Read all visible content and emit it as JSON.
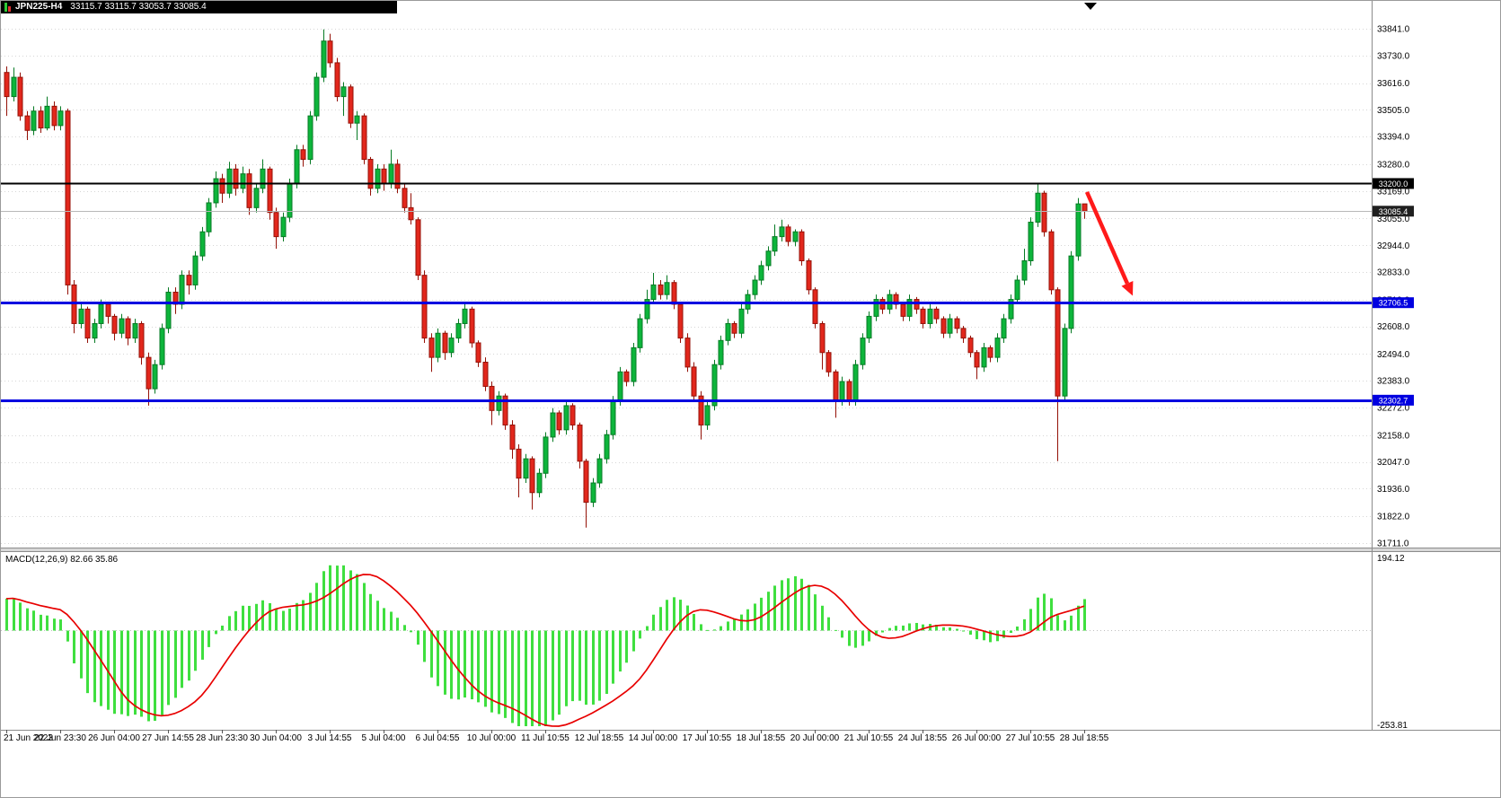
{
  "title": {
    "symbol": "JPN225-H4",
    "values": "33115.7 33115.7 33053.7 33085.4"
  },
  "colors": {
    "up_fill": "#0db53b",
    "up_stroke": "#067a24",
    "down_fill": "#e2271c",
    "down_stroke": "#941107",
    "grid": "#d6d6d6",
    "axis_line": "#8c8c8c",
    "blue_line": "#0000e0",
    "black_line": "#000000",
    "current_line": "#b8b8b8",
    "macd_hist": "#3fdf3f",
    "macd_signal": "#e80000",
    "arrow": "#ff1a1a",
    "badge_text": "#ffffff"
  },
  "chart_data": {
    "type": "candlestick",
    "symbol": "JPN225",
    "timeframe": "H4",
    "title": "JPN225-H4",
    "current_price": 33085.4,
    "y_axis": {
      "max": 33841.0,
      "min": 31711.0,
      "tick_labels": [
        "33841.0",
        "33730.0",
        "33616.0",
        "33505.0",
        "33394.0",
        "33280.0",
        "33169.0",
        "33055.0",
        "32944.0",
        "32833.0",
        "32719.0",
        "32608.0",
        "32494.0",
        "32383.0",
        "32272.0",
        "32158.0",
        "32047.0",
        "31936.0",
        "31822.0",
        "31711.0"
      ]
    },
    "x_tick_labels": [
      "21 Jun 2023",
      "22 Jun 23:30",
      "26 Jun 04:00",
      "27 Jun 14:55",
      "28 Jun 23:30",
      "30 Jun 04:00",
      "3 Jul 14:55",
      "5 Jul 04:00",
      "6 Jul 04:55",
      "10 Jul 00:00",
      "11 Jul 10:55",
      "12 Jul 18:55",
      "14 Jul 00:00",
      "17 Jul 10:55",
      "18 Jul 18:55",
      "20 Jul 00:00",
      "21 Jul 10:55",
      "24 Jul 18:55",
      "26 Jul 00:00",
      "27 Jul 10:55",
      "28 Jul 18:55"
    ],
    "x_tick_every_n_candles": 8,
    "horizontal_lines": [
      {
        "label": "33200.0",
        "value": 33200.0,
        "style": "solid",
        "color": "#000000",
        "badge_bg": "#000000",
        "thickness": 2
      },
      {
        "label": "33085.4",
        "value": 33085.4,
        "style": "current",
        "color": "#b8b8b8",
        "badge_bg": "#1f1f1f",
        "thickness": 1
      },
      {
        "label": "32706.5",
        "value": 32706.5,
        "style": "solid",
        "color": "#0000e0",
        "badge_bg": "#0000e0",
        "thickness": 3
      },
      {
        "label": "32302.7",
        "value": 32302.7,
        "style": "solid",
        "color": "#0000e0",
        "badge_bg": "#0000e0",
        "thickness": 3
      }
    ],
    "indicator": {
      "name": "MACD",
      "params": "12,26,9",
      "label": "MACD(12,26,9) 82.66 35.86",
      "values": [
        82.66,
        35.86
      ],
      "axis": {
        "max": 194.12,
        "min": -253.81,
        "max_label": "194.12",
        "min_label": "-253.81"
      }
    },
    "annotations": [
      {
        "type": "arrow",
        "color": "#ff1a1a",
        "from": {
          "index": 160.4,
          "price": 33165
        },
        "to": {
          "index": 167.2,
          "price": 32735
        }
      }
    ],
    "candles_ohlc": [
      [
        33660,
        33685,
        33480,
        33560
      ],
      [
        33560,
        33680,
        33540,
        33640
      ],
      [
        33640,
        33660,
        33460,
        33480
      ],
      [
        33480,
        33500,
        33380,
        33420
      ],
      [
        33420,
        33520,
        33400,
        33500
      ],
      [
        33500,
        33520,
        33410,
        33430
      ],
      [
        33430,
        33560,
        33420,
        33520
      ],
      [
        33520,
        33540,
        33420,
        33440
      ],
      [
        33440,
        33520,
        33420,
        33500
      ],
      [
        33500,
        33510,
        32740,
        32780
      ],
      [
        32780,
        32800,
        32580,
        32620
      ],
      [
        32620,
        32700,
        32600,
        32680
      ],
      [
        32680,
        32690,
        32540,
        32560
      ],
      [
        32560,
        32640,
        32540,
        32620
      ],
      [
        32620,
        32720,
        32600,
        32700
      ],
      [
        32700,
        32710,
        32620,
        32650
      ],
      [
        32650,
        32660,
        32550,
        32580
      ],
      [
        32580,
        32660,
        32560,
        32640
      ],
      [
        32640,
        32650,
        32530,
        32560
      ],
      [
        32560,
        32640,
        32540,
        32620
      ],
      [
        32620,
        32630,
        32450,
        32480
      ],
      [
        32480,
        32500,
        32280,
        32350
      ],
      [
        32350,
        32470,
        32330,
        32450
      ],
      [
        32450,
        32620,
        32430,
        32600
      ],
      [
        32600,
        32770,
        32580,
        32750
      ],
      [
        32750,
        32770,
        32660,
        32700
      ],
      [
        32700,
        32840,
        32680,
        32820
      ],
      [
        32820,
        32840,
        32740,
        32780
      ],
      [
        32780,
        32920,
        32760,
        32900
      ],
      [
        32900,
        33020,
        32880,
        33000
      ],
      [
        33000,
        33140,
        32980,
        33120
      ],
      [
        33120,
        33250,
        33100,
        33220
      ],
      [
        33220,
        33240,
        33120,
        33160
      ],
      [
        33160,
        33290,
        33140,
        33260
      ],
      [
        33260,
        33280,
        33150,
        33180
      ],
      [
        33180,
        33270,
        33160,
        33240
      ],
      [
        33240,
        33260,
        33070,
        33100
      ],
      [
        33100,
        33200,
        33080,
        33180
      ],
      [
        33180,
        33300,
        33160,
        33260
      ],
      [
        33260,
        33270,
        33050,
        33080
      ],
      [
        33080,
        33100,
        32930,
        32980
      ],
      [
        32980,
        33080,
        32960,
        33060
      ],
      [
        33060,
        33220,
        33040,
        33200
      ],
      [
        33200,
        33360,
        33180,
        33340
      ],
      [
        33340,
        33360,
        33270,
        33300
      ],
      [
        33300,
        33500,
        33280,
        33480
      ],
      [
        33480,
        33660,
        33460,
        33640
      ],
      [
        33640,
        33838,
        33620,
        33790
      ],
      [
        33790,
        33820,
        33680,
        33700
      ],
      [
        33700,
        33720,
        33540,
        33560
      ],
      [
        33560,
        33620,
        33480,
        33600
      ],
      [
        33600,
        33610,
        33430,
        33450
      ],
      [
        33450,
        33500,
        33380,
        33480
      ],
      [
        33480,
        33490,
        33280,
        33300
      ],
      [
        33300,
        33310,
        33150,
        33180
      ],
      [
        33180,
        33280,
        33160,
        33260
      ],
      [
        33260,
        33280,
        33170,
        33200
      ],
      [
        33200,
        33340,
        33180,
        33280
      ],
      [
        33280,
        33300,
        33160,
        33180
      ],
      [
        33180,
        33200,
        33080,
        33100
      ],
      [
        33100,
        33160,
        33030,
        33050
      ],
      [
        33050,
        33060,
        32800,
        32820
      ],
      [
        32820,
        32840,
        32540,
        32560
      ],
      [
        32560,
        32580,
        32420,
        32480
      ],
      [
        32480,
        32600,
        32460,
        32580
      ],
      [
        32580,
        32590,
        32470,
        32500
      ],
      [
        32500,
        32580,
        32480,
        32560
      ],
      [
        32560,
        32640,
        32540,
        32620
      ],
      [
        32620,
        32700,
        32600,
        32680
      ],
      [
        32680,
        32690,
        32520,
        32540
      ],
      [
        32540,
        32550,
        32440,
        32460
      ],
      [
        32460,
        32480,
        32340,
        32360
      ],
      [
        32360,
        32380,
        32200,
        32260
      ],
      [
        32260,
        32340,
        32240,
        32320
      ],
      [
        32320,
        32330,
        32180,
        32200
      ],
      [
        32200,
        32220,
        32060,
        32100
      ],
      [
        32100,
        32120,
        31900,
        31980
      ],
      [
        31980,
        32080,
        31960,
        32060
      ],
      [
        32060,
        32070,
        31850,
        31920
      ],
      [
        31920,
        32020,
        31900,
        32000
      ],
      [
        32000,
        32170,
        31980,
        32150
      ],
      [
        32150,
        32270,
        32130,
        32250
      ],
      [
        32250,
        32260,
        32160,
        32180
      ],
      [
        32180,
        32300,
        32160,
        32280
      ],
      [
        32280,
        32290,
        32180,
        32200
      ],
      [
        32200,
        32210,
        32020,
        32050
      ],
      [
        32050,
        32060,
        31775,
        31880
      ],
      [
        31880,
        31980,
        31860,
        31960
      ],
      [
        31960,
        32080,
        31940,
        32060
      ],
      [
        32060,
        32180,
        32040,
        32160
      ],
      [
        32160,
        32320,
        32140,
        32300
      ],
      [
        32300,
        32440,
        32280,
        32420
      ],
      [
        32420,
        32430,
        32360,
        32380
      ],
      [
        32380,
        32540,
        32360,
        32520
      ],
      [
        32520,
        32660,
        32500,
        32640
      ],
      [
        32640,
        32760,
        32620,
        32720
      ],
      [
        32720,
        32830,
        32700,
        32780
      ],
      [
        32780,
        32800,
        32720,
        32740
      ],
      [
        32740,
        32820,
        32720,
        32790
      ],
      [
        32790,
        32800,
        32680,
        32700
      ],
      [
        32700,
        32710,
        32540,
        32560
      ],
      [
        32560,
        32580,
        32420,
        32440
      ],
      [
        32440,
        32460,
        32300,
        32320
      ],
      [
        32320,
        32340,
        32140,
        32200
      ],
      [
        32200,
        32300,
        32180,
        32280
      ],
      [
        32280,
        32470,
        32260,
        32450
      ],
      [
        32450,
        32570,
        32430,
        32550
      ],
      [
        32550,
        32640,
        32530,
        32620
      ],
      [
        32620,
        32630,
        32560,
        32580
      ],
      [
        32580,
        32700,
        32560,
        32680
      ],
      [
        32680,
        32760,
        32660,
        32740
      ],
      [
        32740,
        32820,
        32720,
        32800
      ],
      [
        32800,
        32880,
        32780,
        32860
      ],
      [
        32860,
        32940,
        32840,
        32920
      ],
      [
        32920,
        33030,
        32900,
        32980
      ],
      [
        32980,
        33050,
        32960,
        33020
      ],
      [
        33020,
        33030,
        32940,
        32960
      ],
      [
        32960,
        33010,
        32940,
        33000
      ],
      [
        33000,
        33010,
        32860,
        32880
      ],
      [
        32880,
        32890,
        32740,
        32760
      ],
      [
        32760,
        32770,
        32600,
        32620
      ],
      [
        32620,
        32630,
        32430,
        32500
      ],
      [
        32500,
        32510,
        32400,
        32420
      ],
      [
        32420,
        32430,
        32230,
        32300
      ],
      [
        32300,
        32400,
        32280,
        32380
      ],
      [
        32380,
        32390,
        32280,
        32300
      ],
      [
        32300,
        32470,
        32280,
        32450
      ],
      [
        32450,
        32580,
        32430,
        32560
      ],
      [
        32560,
        32670,
        32540,
        32650
      ],
      [
        32650,
        32740,
        32630,
        32720
      ],
      [
        32720,
        32730,
        32660,
        32680
      ],
      [
        32680,
        32760,
        32660,
        32740
      ],
      [
        32740,
        32750,
        32680,
        32700
      ],
      [
        32700,
        32710,
        32630,
        32650
      ],
      [
        32650,
        32740,
        32630,
        32720
      ],
      [
        32720,
        32730,
        32660,
        32680
      ],
      [
        32680,
        32690,
        32600,
        32620
      ],
      [
        32620,
        32700,
        32600,
        32680
      ],
      [
        32680,
        32690,
        32620,
        32640
      ],
      [
        32640,
        32650,
        32560,
        32580
      ],
      [
        32580,
        32660,
        32560,
        32640
      ],
      [
        32640,
        32650,
        32580,
        32600
      ],
      [
        32600,
        32610,
        32540,
        32560
      ],
      [
        32560,
        32570,
        32480,
        32500
      ],
      [
        32500,
        32510,
        32390,
        32440
      ],
      [
        32440,
        32540,
        32420,
        32520
      ],
      [
        32520,
        32530,
        32460,
        32480
      ],
      [
        32480,
        32580,
        32460,
        32560
      ],
      [
        32560,
        32660,
        32540,
        32640
      ],
      [
        32640,
        32740,
        32620,
        32720
      ],
      [
        32720,
        32820,
        32700,
        32800
      ],
      [
        32800,
        32930,
        32780,
        32880
      ],
      [
        32880,
        33060,
        32860,
        33040
      ],
      [
        33040,
        33200,
        33020,
        33160
      ],
      [
        33160,
        33170,
        32980,
        33000
      ],
      [
        33000,
        33010,
        32740,
        32760
      ],
      [
        32760,
        32770,
        32050,
        32320
      ],
      [
        32320,
        32620,
        32300,
        32600
      ],
      [
        32600,
        32920,
        32580,
        32900
      ],
      [
        32900,
        33140,
        32880,
        33115.7
      ],
      [
        33115.7,
        33115.7,
        33053.7,
        33085.4
      ]
    ]
  }
}
